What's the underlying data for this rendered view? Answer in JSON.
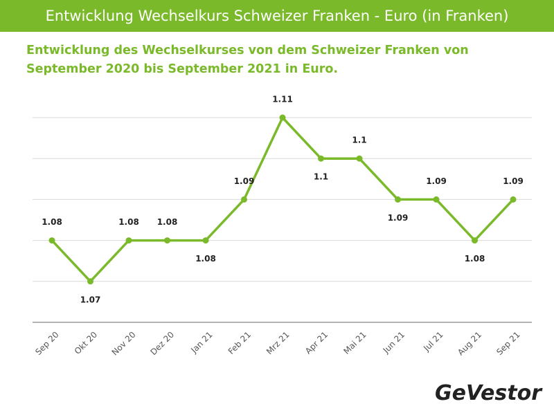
{
  "chart_data": {
    "type": "line",
    "title": "Entwicklung Wechselkurs Schweizer Franken - Euro (in Franken)",
    "subtitle": "Entwicklung des Wechselkurses von dem Schweizer Franken von September 2020 bis September 2021 in Euro.",
    "categories": [
      "Sep 20",
      "Okt 20",
      "Nov 20",
      "Dez 20",
      "Jan 21",
      "Feb 21",
      "Mrz 21",
      "Apr 21",
      "Mai 21",
      "Jun 21",
      "Jul 21",
      "Aug 21",
      "Sep 21"
    ],
    "values": [
      1.08,
      1.07,
      1.08,
      1.08,
      1.08,
      1.09,
      1.11,
      1.1,
      1.1,
      1.09,
      1.09,
      1.08,
      1.09
    ],
    "color": "#7ab929",
    "ylim": [
      1.06,
      1.11
    ],
    "yticks": [
      1.06,
      1.07,
      1.08,
      1.09,
      1.1,
      1.11
    ],
    "grid": true
  },
  "logo": "GeVestor"
}
